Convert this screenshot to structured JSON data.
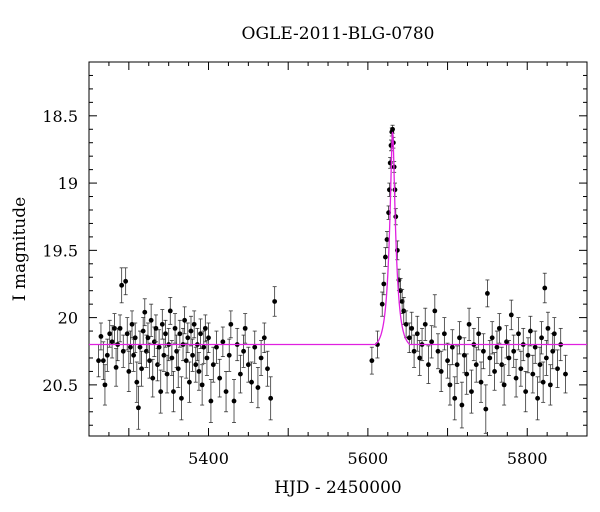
{
  "chart_data": {
    "type": "scatter",
    "title": "OGLE-2011-BLG-0780",
    "xlabel": "HJD - 2450000",
    "ylabel": "I magnitude",
    "xlim": [
      5250,
      5875
    ],
    "ylim": [
      20.88,
      18.1
    ],
    "y_inverted": true,
    "x_ticks": [
      5400,
      5600,
      5800
    ],
    "x_tick_labels": [
      "5400",
      "5600",
      "5800"
    ],
    "y_ticks": [
      18.5,
      19,
      19.5,
      20,
      20.5
    ],
    "y_tick_labels": [
      "18.5",
      "19",
      "19.5",
      "20",
      "20.5"
    ],
    "model_color": "#e020e0",
    "point_color": "#000000",
    "model": {
      "baseline": 20.2,
      "peak_mag": 18.62,
      "t0": 5631,
      "tE": 9,
      "u0": 0.23
    },
    "series": [
      {
        "points": [
          [
            5262,
            20.32,
            0.12
          ],
          [
            5265,
            20.14,
            0.1
          ],
          [
            5268,
            20.32,
            0.14
          ],
          [
            5270,
            20.5,
            0.15
          ],
          [
            5273,
            20.28,
            0.12
          ],
          [
            5276,
            20.12,
            0.1
          ],
          [
            5279,
            20.18,
            0.12
          ],
          [
            5282,
            20.08,
            0.11
          ],
          [
            5284,
            20.37,
            0.14
          ],
          [
            5286,
            20.2,
            0.12
          ],
          [
            5289,
            20.08,
            0.1
          ],
          [
            5291,
            19.76,
            0.13
          ],
          [
            5293,
            20.25,
            0.12
          ],
          [
            5296,
            19.73,
            0.1
          ],
          [
            5298,
            20.12,
            0.12
          ],
          [
            5300,
            20.4,
            0.15
          ],
          [
            5302,
            20.22,
            0.12
          ],
          [
            5304,
            20.05,
            0.1
          ],
          [
            5306,
            20.28,
            0.12
          ],
          [
            5308,
            20.15,
            0.11
          ],
          [
            5310,
            20.48,
            0.15
          ],
          [
            5312,
            20.67,
            0.16
          ],
          [
            5314,
            20.22,
            0.12
          ],
          [
            5316,
            20.38,
            0.13
          ],
          [
            5318,
            20.1,
            0.1
          ],
          [
            5320,
            19.96,
            0.1
          ],
          [
            5322,
            20.25,
            0.12
          ],
          [
            5324,
            20.15,
            0.11
          ],
          [
            5326,
            20.32,
            0.13
          ],
          [
            5328,
            20.02,
            0.12
          ],
          [
            5330,
            20.45,
            0.14
          ],
          [
            5332,
            20.18,
            0.11
          ],
          [
            5334,
            20.08,
            0.1
          ],
          [
            5336,
            20.35,
            0.12
          ],
          [
            5338,
            20.22,
            0.13
          ],
          [
            5340,
            20.55,
            0.16
          ],
          [
            5342,
            20.05,
            0.11
          ],
          [
            5344,
            20.28,
            0.12
          ],
          [
            5346,
            20.12,
            0.1
          ],
          [
            5348,
            20.42,
            0.14
          ],
          [
            5350,
            20.2,
            0.12
          ],
          [
            5352,
            19.95,
            0.1
          ],
          [
            5354,
            20.3,
            0.13
          ],
          [
            5356,
            20.55,
            0.15
          ],
          [
            5358,
            20.08,
            0.11
          ],
          [
            5360,
            20.25,
            0.12
          ],
          [
            5362,
            20.38,
            0.14
          ],
          [
            5364,
            20.12,
            0.1
          ],
          [
            5366,
            20.6,
            0.16
          ],
          [
            5368,
            20.2,
            0.12
          ],
          [
            5370,
            20.02,
            0.1
          ],
          [
            5372,
            20.32,
            0.13
          ],
          [
            5374,
            20.15,
            0.11
          ],
          [
            5376,
            20.48,
            0.15
          ],
          [
            5378,
            20.1,
            0.11
          ],
          [
            5380,
            20.28,
            0.12
          ],
          [
            5382,
            20.05,
            0.1
          ],
          [
            5384,
            20.35,
            0.13
          ],
          [
            5386,
            20.2,
            0.12
          ],
          [
            5388,
            20.4,
            0.14
          ],
          [
            5390,
            20.12,
            0.11
          ],
          [
            5392,
            20.5,
            0.15
          ],
          [
            5394,
            20.22,
            0.12
          ],
          [
            5396,
            20.08,
            0.1
          ],
          [
            5398,
            20.3,
            0.13
          ],
          [
            5400,
            20.15,
            0.11
          ],
          [
            5403,
            20.62,
            0.16
          ],
          [
            5406,
            20.35,
            0.13
          ],
          [
            5410,
            20.22,
            0.12
          ],
          [
            5414,
            20.45,
            0.14
          ],
          [
            5418,
            20.18,
            0.11
          ],
          [
            5422,
            20.55,
            0.15
          ],
          [
            5426,
            20.28,
            0.12
          ],
          [
            5428,
            20.05,
            0.1
          ],
          [
            5432,
            20.62,
            0.16
          ],
          [
            5436,
            20.2,
            0.12
          ],
          [
            5440,
            20.42,
            0.14
          ],
          [
            5444,
            20.25,
            0.12
          ],
          [
            5446,
            20.08,
            0.11
          ],
          [
            5450,
            20.35,
            0.13
          ],
          [
            5454,
            20.48,
            0.15
          ],
          [
            5458,
            20.22,
            0.12
          ],
          [
            5462,
            20.52,
            0.15
          ],
          [
            5466,
            20.3,
            0.13
          ],
          [
            5470,
            20.15,
            0.11
          ],
          [
            5474,
            20.38,
            0.13
          ],
          [
            5478,
            20.6,
            0.16
          ],
          [
            5483,
            19.88,
            0.11
          ],
          [
            5605,
            20.32,
            0.1
          ],
          [
            5612,
            20.2,
            0.1
          ],
          [
            5618,
            19.9,
            0.09
          ],
          [
            5620,
            19.75,
            0.08
          ],
          [
            5622,
            19.55,
            0.07
          ],
          [
            5624,
            19.42,
            0.06
          ],
          [
            5626,
            19.22,
            0.05
          ],
          [
            5627,
            19.05,
            0.05
          ],
          [
            5628,
            18.85,
            0.04
          ],
          [
            5629,
            18.72,
            0.04
          ],
          [
            5630,
            18.62,
            0.03
          ],
          [
            5631,
            18.6,
            0.03
          ],
          [
            5632,
            18.7,
            0.04
          ],
          [
            5633,
            18.88,
            0.04
          ],
          [
            5634,
            19.05,
            0.05
          ],
          [
            5635,
            19.25,
            0.06
          ],
          [
            5637,
            19.5,
            0.07
          ],
          [
            5639,
            19.72,
            0.08
          ],
          [
            5641,
            19.8,
            0.09
          ],
          [
            5643,
            19.88,
            0.09
          ],
          [
            5645,
            19.95,
            0.1
          ],
          [
            5648,
            20.05,
            0.1
          ],
          [
            5652,
            20.15,
            0.11
          ],
          [
            5655,
            20.08,
            0.12
          ],
          [
            5658,
            20.25,
            0.12
          ],
          [
            5662,
            20.12,
            0.13
          ],
          [
            5665,
            20.3,
            0.13
          ],
          [
            5668,
            20.2,
            0.12
          ],
          [
            5672,
            20.05,
            0.12
          ],
          [
            5676,
            20.35,
            0.14
          ],
          [
            5680,
            20.18,
            0.12
          ],
          [
            5684,
            19.95,
            0.12
          ],
          [
            5688,
            20.25,
            0.13
          ],
          [
            5692,
            20.4,
            0.15
          ],
          [
            5696,
            20.12,
            0.12
          ],
          [
            5700,
            20.32,
            0.13
          ],
          [
            5703,
            20.5,
            0.15
          ],
          [
            5706,
            20.22,
            0.13
          ],
          [
            5709,
            20.6,
            0.16
          ],
          [
            5712,
            20.35,
            0.14
          ],
          [
            5715,
            20.15,
            0.12
          ],
          [
            5718,
            20.65,
            0.17
          ],
          [
            5721,
            20.28,
            0.13
          ],
          [
            5724,
            20.42,
            0.15
          ],
          [
            5727,
            20.05,
            0.12
          ],
          [
            5730,
            20.55,
            0.16
          ],
          [
            5733,
            20.2,
            0.12
          ],
          [
            5736,
            20.35,
            0.13
          ],
          [
            5739,
            20.12,
            0.12
          ],
          [
            5742,
            20.48,
            0.15
          ],
          [
            5745,
            20.25,
            0.13
          ],
          [
            5748,
            20.68,
            0.18
          ],
          [
            5750,
            19.82,
            0.1
          ],
          [
            5753,
            20.3,
            0.13
          ],
          [
            5756,
            20.15,
            0.12
          ],
          [
            5759,
            20.4,
            0.14
          ],
          [
            5762,
            20.22,
            0.12
          ],
          [
            5765,
            20.08,
            0.11
          ],
          [
            5768,
            20.35,
            0.13
          ],
          [
            5771,
            20.5,
            0.15
          ],
          [
            5774,
            20.18,
            0.12
          ],
          [
            5777,
            20.3,
            0.13
          ],
          [
            5780,
            19.98,
            0.11
          ],
          [
            5783,
            20.25,
            0.12
          ],
          [
            5786,
            20.45,
            0.14
          ],
          [
            5789,
            20.12,
            0.12
          ],
          [
            5792,
            20.38,
            0.13
          ],
          [
            5795,
            20.2,
            0.12
          ],
          [
            5798,
            20.55,
            0.15
          ],
          [
            5801,
            20.28,
            0.13
          ],
          [
            5804,
            20.1,
            0.11
          ],
          [
            5807,
            20.42,
            0.14
          ],
          [
            5810,
            20.22,
            0.12
          ],
          [
            5813,
            20.6,
            0.16
          ],
          [
            5816,
            20.35,
            0.13
          ],
          [
            5818,
            20.15,
            0.12
          ],
          [
            5820,
            20.48,
            0.15
          ],
          [
            5822,
            19.78,
            0.11
          ],
          [
            5824,
            20.3,
            0.13
          ],
          [
            5826,
            20.08,
            0.12
          ],
          [
            5829,
            20.5,
            0.15
          ],
          [
            5832,
            20.25,
            0.13
          ],
          [
            5834,
            20.12,
            0.12
          ],
          [
            5838,
            20.38,
            0.14
          ],
          [
            5842,
            20.2,
            0.12
          ],
          [
            5848,
            20.42,
            0.14
          ]
        ]
      }
    ]
  }
}
